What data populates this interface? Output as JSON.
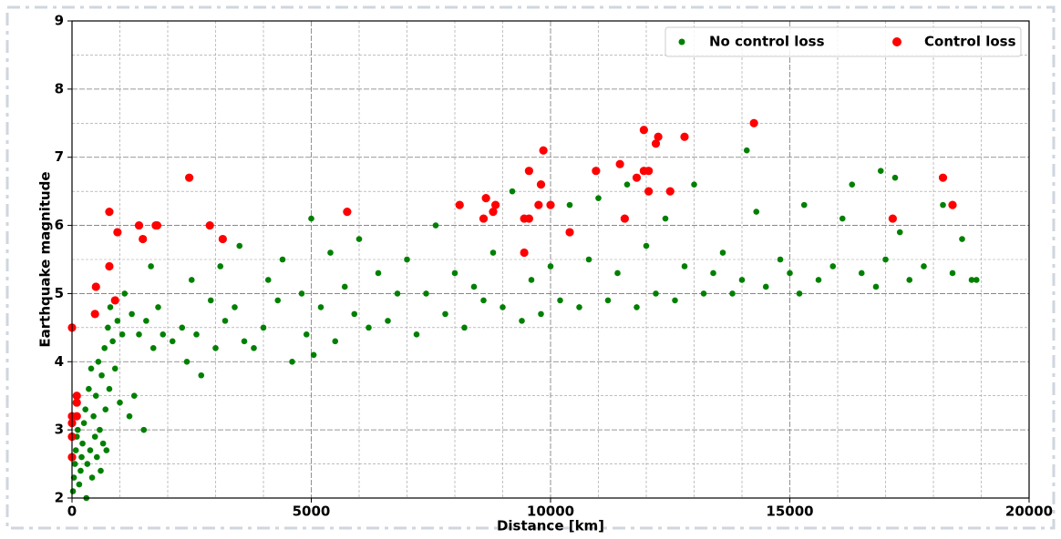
{
  "chart_data": {
    "type": "scatter",
    "xlabel": "Distance [km]",
    "ylabel": "Earthquake magnitude",
    "xlim": [
      0,
      20000
    ],
    "ylim": [
      2,
      9
    ],
    "xticks": [
      0,
      5000,
      10000,
      15000,
      20000
    ],
    "yticks": [
      2,
      3,
      4,
      5,
      6,
      7,
      8,
      9
    ],
    "grid": true,
    "legend": "upper right",
    "series": [
      {
        "name": "No control loss",
        "color": "#008000",
        "x": [
          20,
          40,
          60,
          80,
          100,
          120,
          150,
          180,
          200,
          220,
          250,
          280,
          300,
          320,
          350,
          380,
          400,
          420,
          450,
          480,
          500,
          520,
          550,
          580,
          600,
          620,
          650,
          680,
          700,
          720,
          750,
          780,
          800,
          850,
          900,
          950,
          1000,
          1050,
          1100,
          1200,
          1250,
          1300,
          1400,
          1500,
          1550,
          1650,
          1700,
          1800,
          1900,
          2100,
          2300,
          2400,
          2500,
          2600,
          2700,
          2900,
          3000,
          3100,
          3200,
          3400,
          3500,
          3600,
          3800,
          4000,
          4100,
          4300,
          4400,
          4600,
          4800,
          4900,
          5000,
          5050,
          5200,
          5400,
          5500,
          5700,
          5900,
          6000,
          6200,
          6400,
          6600,
          6800,
          7000,
          7200,
          7400,
          7600,
          7800,
          8000,
          8200,
          8400,
          8600,
          8800,
          9000,
          9200,
          9400,
          9600,
          9800,
          10000,
          10200,
          10400,
          10600,
          10800,
          11000,
          11200,
          11400,
          11600,
          11800,
          12000,
          12200,
          12400,
          12600,
          12800,
          13000,
          13200,
          13400,
          13600,
          13800,
          14000,
          14100,
          14300,
          14500,
          14800,
          15000,
          15200,
          15300,
          15600,
          15900,
          16100,
          16300,
          16500,
          16800,
          16900,
          17000,
          17200,
          17300,
          17500,
          17800,
          18200,
          18400,
          18600,
          18800,
          18900
        ],
        "values": [
          2.1,
          2.3,
          2.5,
          2.7,
          2.9,
          3.0,
          2.2,
          2.4,
          2.6,
          2.8,
          3.1,
          3.3,
          2.0,
          2.5,
          3.6,
          2.7,
          3.9,
          2.3,
          3.2,
          2.9,
          3.5,
          2.6,
          4.0,
          3.0,
          2.4,
          3.8,
          2.8,
          4.2,
          3.3,
          2.7,
          4.5,
          3.6,
          4.8,
          4.3,
          3.9,
          4.6,
          3.4,
          4.4,
          5.0,
          3.2,
          4.7,
          3.5,
          4.4,
          3.0,
          4.6,
          5.4,
          4.2,
          4.8,
          4.4,
          4.3,
          4.5,
          4.0,
          5.2,
          4.4,
          3.8,
          4.9,
          4.2,
          5.4,
          4.6,
          4.8,
          5.7,
          4.3,
          4.2,
          4.5,
          5.2,
          4.9,
          5.5,
          4.0,
          5.0,
          4.4,
          6.1,
          4.1,
          4.8,
          5.6,
          4.3,
          5.1,
          4.7,
          5.8,
          4.5,
          5.3,
          4.6,
          5.0,
          5.5,
          4.4,
          5.0,
          6.0,
          4.7,
          5.3,
          4.5,
          5.1,
          4.9,
          5.6,
          4.8,
          6.5,
          4.6,
          5.2,
          4.7,
          5.4,
          4.9,
          6.3,
          4.8,
          5.5,
          6.4,
          4.9,
          5.3,
          6.6,
          4.8,
          5.7,
          5.0,
          6.1,
          4.9,
          5.4,
          6.6,
          5.0,
          5.3,
          5.6,
          5.0,
          5.2,
          7.1,
          6.2,
          5.1,
          5.5,
          5.3,
          5.0,
          6.3,
          5.2,
          5.4,
          6.1,
          6.6,
          5.3,
          5.1,
          6.8,
          5.5,
          6.7,
          5.9,
          5.2,
          5.4,
          6.3,
          5.3,
          5.8,
          5.2,
          5.2
        ]
      },
      {
        "name": "Control loss",
        "color": "#ff0000",
        "x": [
          0,
          0,
          0,
          0,
          0,
          100,
          100,
          100,
          500,
          480,
          780,
          780,
          900,
          950,
          1400,
          1480,
          1750,
          1780,
          2450,
          2880,
          3150,
          5750,
          8100,
          8600,
          8650,
          8800,
          8850,
          9450,
          9450,
          9550,
          9550,
          9750,
          9800,
          9850,
          10000,
          10400,
          10950,
          11450,
          11550,
          11800,
          11950,
          11950,
          12050,
          12050,
          12200,
          12250,
          12500,
          12800,
          14250,
          17150,
          18200,
          18400
        ],
        "values": [
          4.5,
          3.2,
          3.1,
          2.9,
          2.6,
          3.5,
          3.4,
          3.2,
          5.1,
          4.7,
          6.2,
          5.4,
          4.9,
          5.9,
          6.0,
          5.8,
          6.0,
          6.0,
          6.7,
          6.0,
          5.8,
          6.2,
          6.3,
          6.1,
          6.4,
          6.2,
          6.3,
          5.6,
          6.1,
          6.1,
          6.8,
          6.3,
          6.6,
          7.1,
          6.3,
          5.9,
          6.8,
          6.9,
          6.1,
          6.7,
          6.8,
          7.4,
          6.5,
          6.8,
          7.2,
          7.3,
          6.5,
          7.3,
          7.5,
          6.1,
          6.7,
          6.3
        ]
      }
    ]
  }
}
